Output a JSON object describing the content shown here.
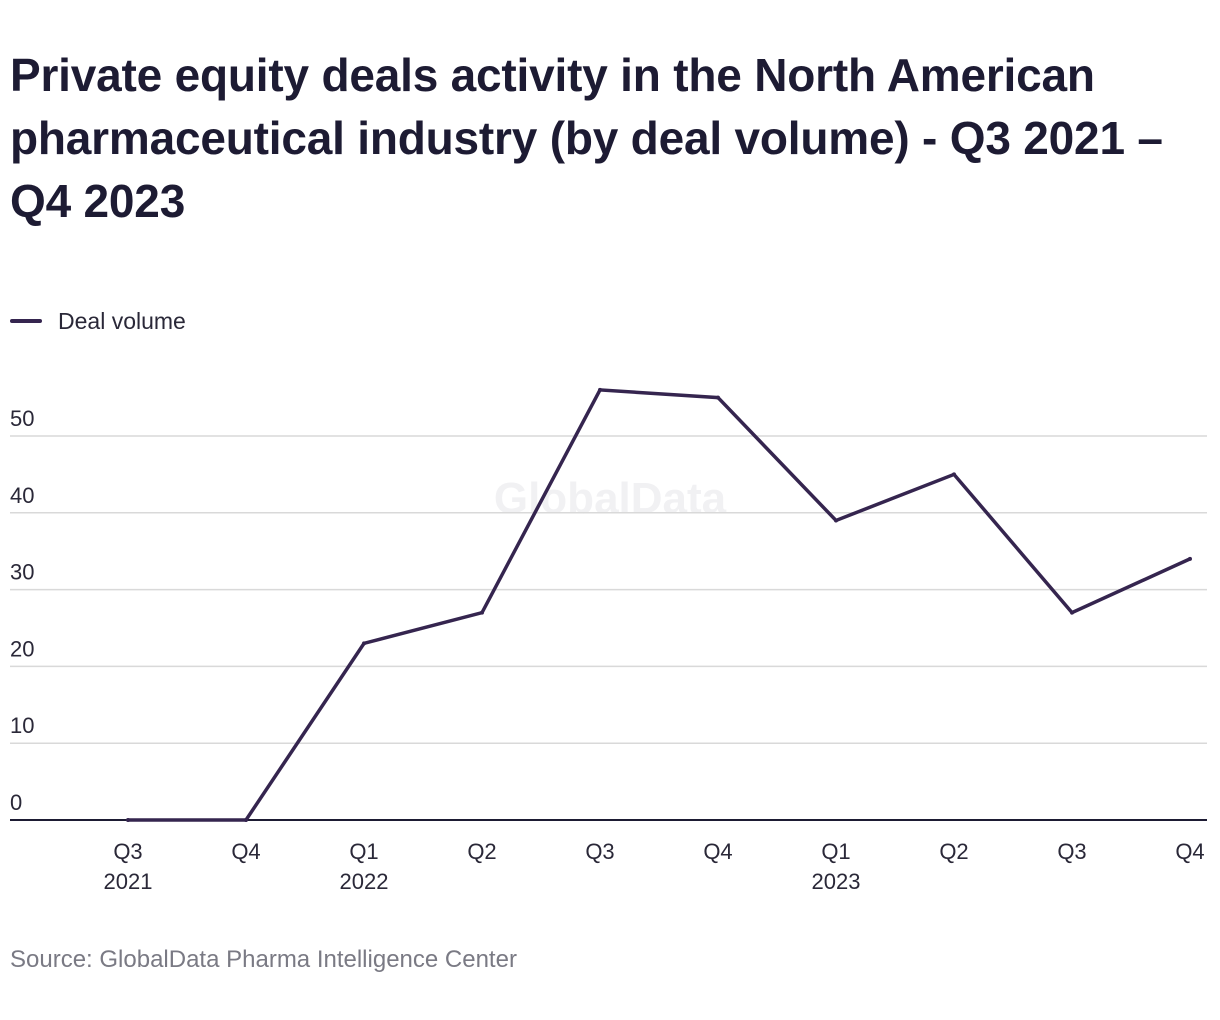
{
  "title": "Private equity deals activity in the North American pharmaceutical industry (by deal volume) - Q3 2021 – Q4 2023",
  "source": "Source: GlobalData Pharma Intelligence Center",
  "watermark": "GlobalData",
  "colors": {
    "line": "#35254f",
    "grid": "#d9d9d9",
    "axis": "#1d1b33",
    "tick_text": "#2a2838",
    "watermark": "#f1f1f3"
  },
  "chart_data": {
    "type": "line",
    "title": "Private equity deals activity in the North American pharmaceutical industry (by deal volume) - Q3 2021 – Q4 2023",
    "xlabel": "",
    "ylabel": "",
    "categories": [
      "Q3 2021",
      "Q4 2021",
      "Q1 2022",
      "Q2 2022",
      "Q3 2022",
      "Q4 2022",
      "Q1 2023",
      "Q2 2023",
      "Q3 2023",
      "Q4 2023"
    ],
    "tick_labels": [
      {
        "quarter": "Q3",
        "year": "2021"
      },
      {
        "quarter": "Q4",
        "year": ""
      },
      {
        "quarter": "Q1",
        "year": "2022"
      },
      {
        "quarter": "Q2",
        "year": ""
      },
      {
        "quarter": "Q3",
        "year": ""
      },
      {
        "quarter": "Q4",
        "year": ""
      },
      {
        "quarter": "Q1",
        "year": "2023"
      },
      {
        "quarter": "Q2",
        "year": ""
      },
      {
        "quarter": "Q3",
        "year": ""
      },
      {
        "quarter": "Q4",
        "year": ""
      }
    ],
    "series": [
      {
        "name": "Deal volume",
        "values": [
          0,
          0,
          23,
          27,
          56,
          55,
          39,
          45,
          27,
          34
        ]
      }
    ],
    "yticks": [
      0,
      10,
      20,
      30,
      40,
      50
    ],
    "ylim": [
      0,
      56
    ],
    "grid": true,
    "legend_position": "top-left"
  }
}
